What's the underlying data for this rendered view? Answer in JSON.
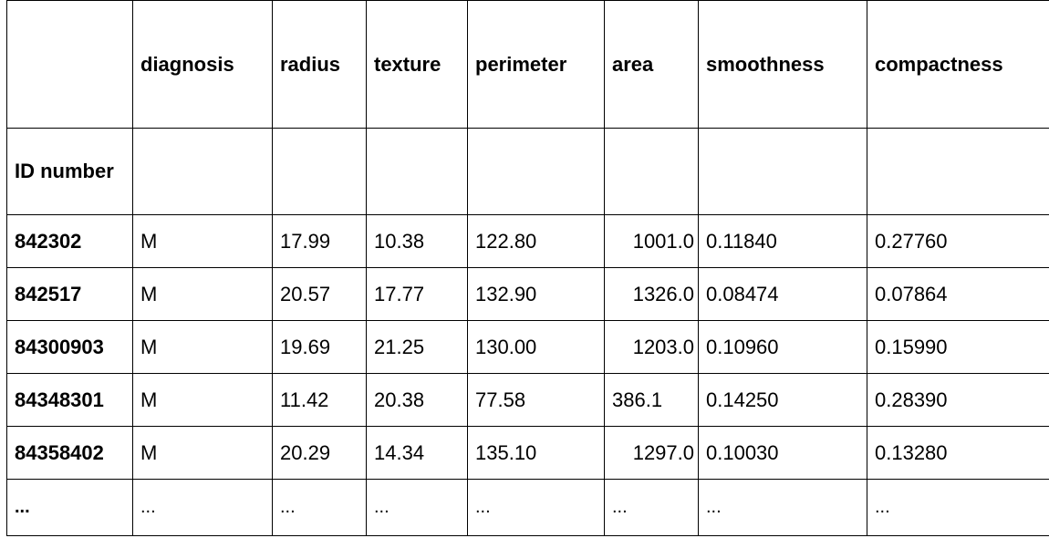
{
  "table": {
    "columns": [
      "diagnosis",
      "radius",
      "texture",
      "perimeter",
      "area",
      "smoothness",
      "compactness"
    ],
    "index_name": "ID number",
    "rows": [
      {
        "id": "842302",
        "values": [
          "M",
          "17.99",
          "10.38",
          "122.80",
          "1001.0",
          "0.11840",
          "0.27760"
        ]
      },
      {
        "id": "842517",
        "values": [
          "M",
          "20.57",
          "17.77",
          "132.90",
          "1326.0",
          "0.08474",
          "0.07864"
        ]
      },
      {
        "id": "84300903",
        "values": [
          "M",
          "19.69",
          "21.25",
          "130.00",
          "1203.0",
          "0.10960",
          "0.15990"
        ]
      },
      {
        "id": "84348301",
        "values": [
          "M",
          "11.42",
          "20.38",
          "77.58",
          "386.1",
          "0.14250",
          "0.28390"
        ]
      },
      {
        "id": "84358402",
        "values": [
          "M",
          "20.29",
          "14.34",
          "135.10",
          "1297.0",
          "0.10030",
          "0.13280"
        ]
      }
    ],
    "ellipsis": "..."
  }
}
